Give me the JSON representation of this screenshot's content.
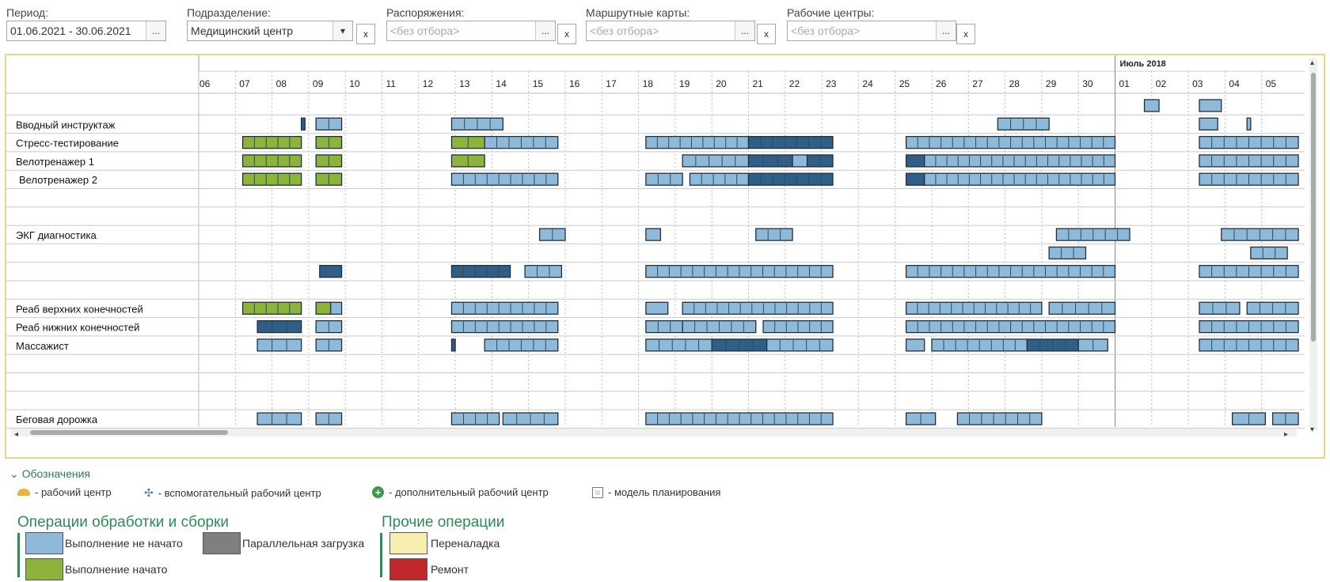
{
  "filters": {
    "period": {
      "label": "Период:",
      "value": "01.06.2021 - 30.06.2021"
    },
    "division": {
      "label": "Подразделение:",
      "value": "Медицинский центр"
    },
    "orders": {
      "label": "Распоряжения:",
      "placeholder": "<без отбора>"
    },
    "route_cards": {
      "label": "Маршрутные карты:",
      "placeholder": "<без отбора>"
    },
    "work_centers": {
      "label": "Рабочие центры:",
      "placeholder": "<без отбора>"
    },
    "btn_ellipsis": "...",
    "btn_clear": "x",
    "btn_dropdown": "▾"
  },
  "gantt": {
    "month_label": "Июль 2018",
    "days": [
      "06",
      "07",
      "08",
      "09",
      "10",
      "11",
      "12",
      "13",
      "14",
      "15",
      "16",
      "17",
      "18",
      "19",
      "20",
      "21",
      "22",
      "23",
      "24",
      "25",
      "26",
      "27",
      "28",
      "29",
      "30",
      "01",
      "02",
      "03",
      "04",
      "05"
    ],
    "rows": [
      "",
      "Вводный инструктаж",
      "Стресс-тестирование",
      "Велотренажер 1",
      "Велотренажер 2",
      "",
      "",
      "ЭКГ диагностика",
      "",
      "",
      "",
      "Реаб верхних конечностей",
      "Реаб нижних конечностей",
      "Массажист",
      "",
      "",
      "",
      "Беговая дорожка"
    ],
    "scroll_left": "◂",
    "scroll_right": "▸",
    "scroll_up": "▴",
    "scroll_down": "▾"
  },
  "legend": {
    "toggle": "Обозначения",
    "items": [
      {
        "icon": "work-center-icon",
        "label": "- рабочий центр"
      },
      {
        "icon": "aux-work-center-icon",
        "label": "- вспомогательный рабочий центр"
      },
      {
        "icon": "additional-work-center-icon",
        "label": "- дополнительный рабочий центр"
      },
      {
        "icon": "planning-model-icon",
        "label": "- модель планирования"
      }
    ],
    "group1_title": "Операции обработки и сборки",
    "group2_title": "Прочие операции",
    "not_started": "Выполнение не начато",
    "started": "Выполнение начато",
    "parallel": "Параллельная загрузка",
    "setup": "Переналадка",
    "repair": "Ремонт"
  },
  "colors": {
    "not_started": "#8fb9d8",
    "started": "#8db43a",
    "parallel": "#7f7f7f",
    "setup": "#f7eeb0",
    "repair": "#c0282b",
    "dark_load": "#2f5f86"
  }
}
